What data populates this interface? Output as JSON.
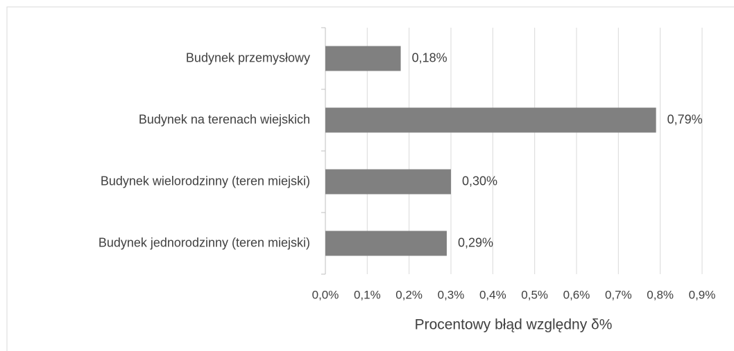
{
  "chart_data": {
    "type": "bar",
    "orientation": "horizontal",
    "x_label": "Procentowy błąd względny δ%",
    "categories": [
      "Budynek przemysłowy",
      "Budynek na terenach wiejskich",
      "Budynek wielorodzinny (teren miejski)",
      "Budynek jednorodzinny (teren miejski)"
    ],
    "values": [
      0.18,
      0.79,
      0.3,
      0.29
    ],
    "value_labels": [
      "0,18%",
      "0,79%",
      "0,30%",
      "0,29%"
    ],
    "color": "#808080",
    "xlim": [
      0,
      0.9
    ],
    "xticks": [
      {
        "value": 0,
        "label": "0,0%"
      },
      {
        "value": 0.1,
        "label": "0,1%"
      },
      {
        "value": 0.2,
        "label": "0,2%"
      },
      {
        "value": 0.3,
        "label": "0,3%"
      },
      {
        "value": 0.4,
        "label": "0,4%"
      },
      {
        "value": 0.5,
        "label": "0,5%"
      },
      {
        "value": 0.6,
        "label": "0,6%"
      },
      {
        "value": 0.7,
        "label": "0,7%"
      },
      {
        "value": 0.8,
        "label": "0,8%"
      },
      {
        "value": 0.9,
        "label": "0,9%"
      }
    ],
    "grid": true
  }
}
